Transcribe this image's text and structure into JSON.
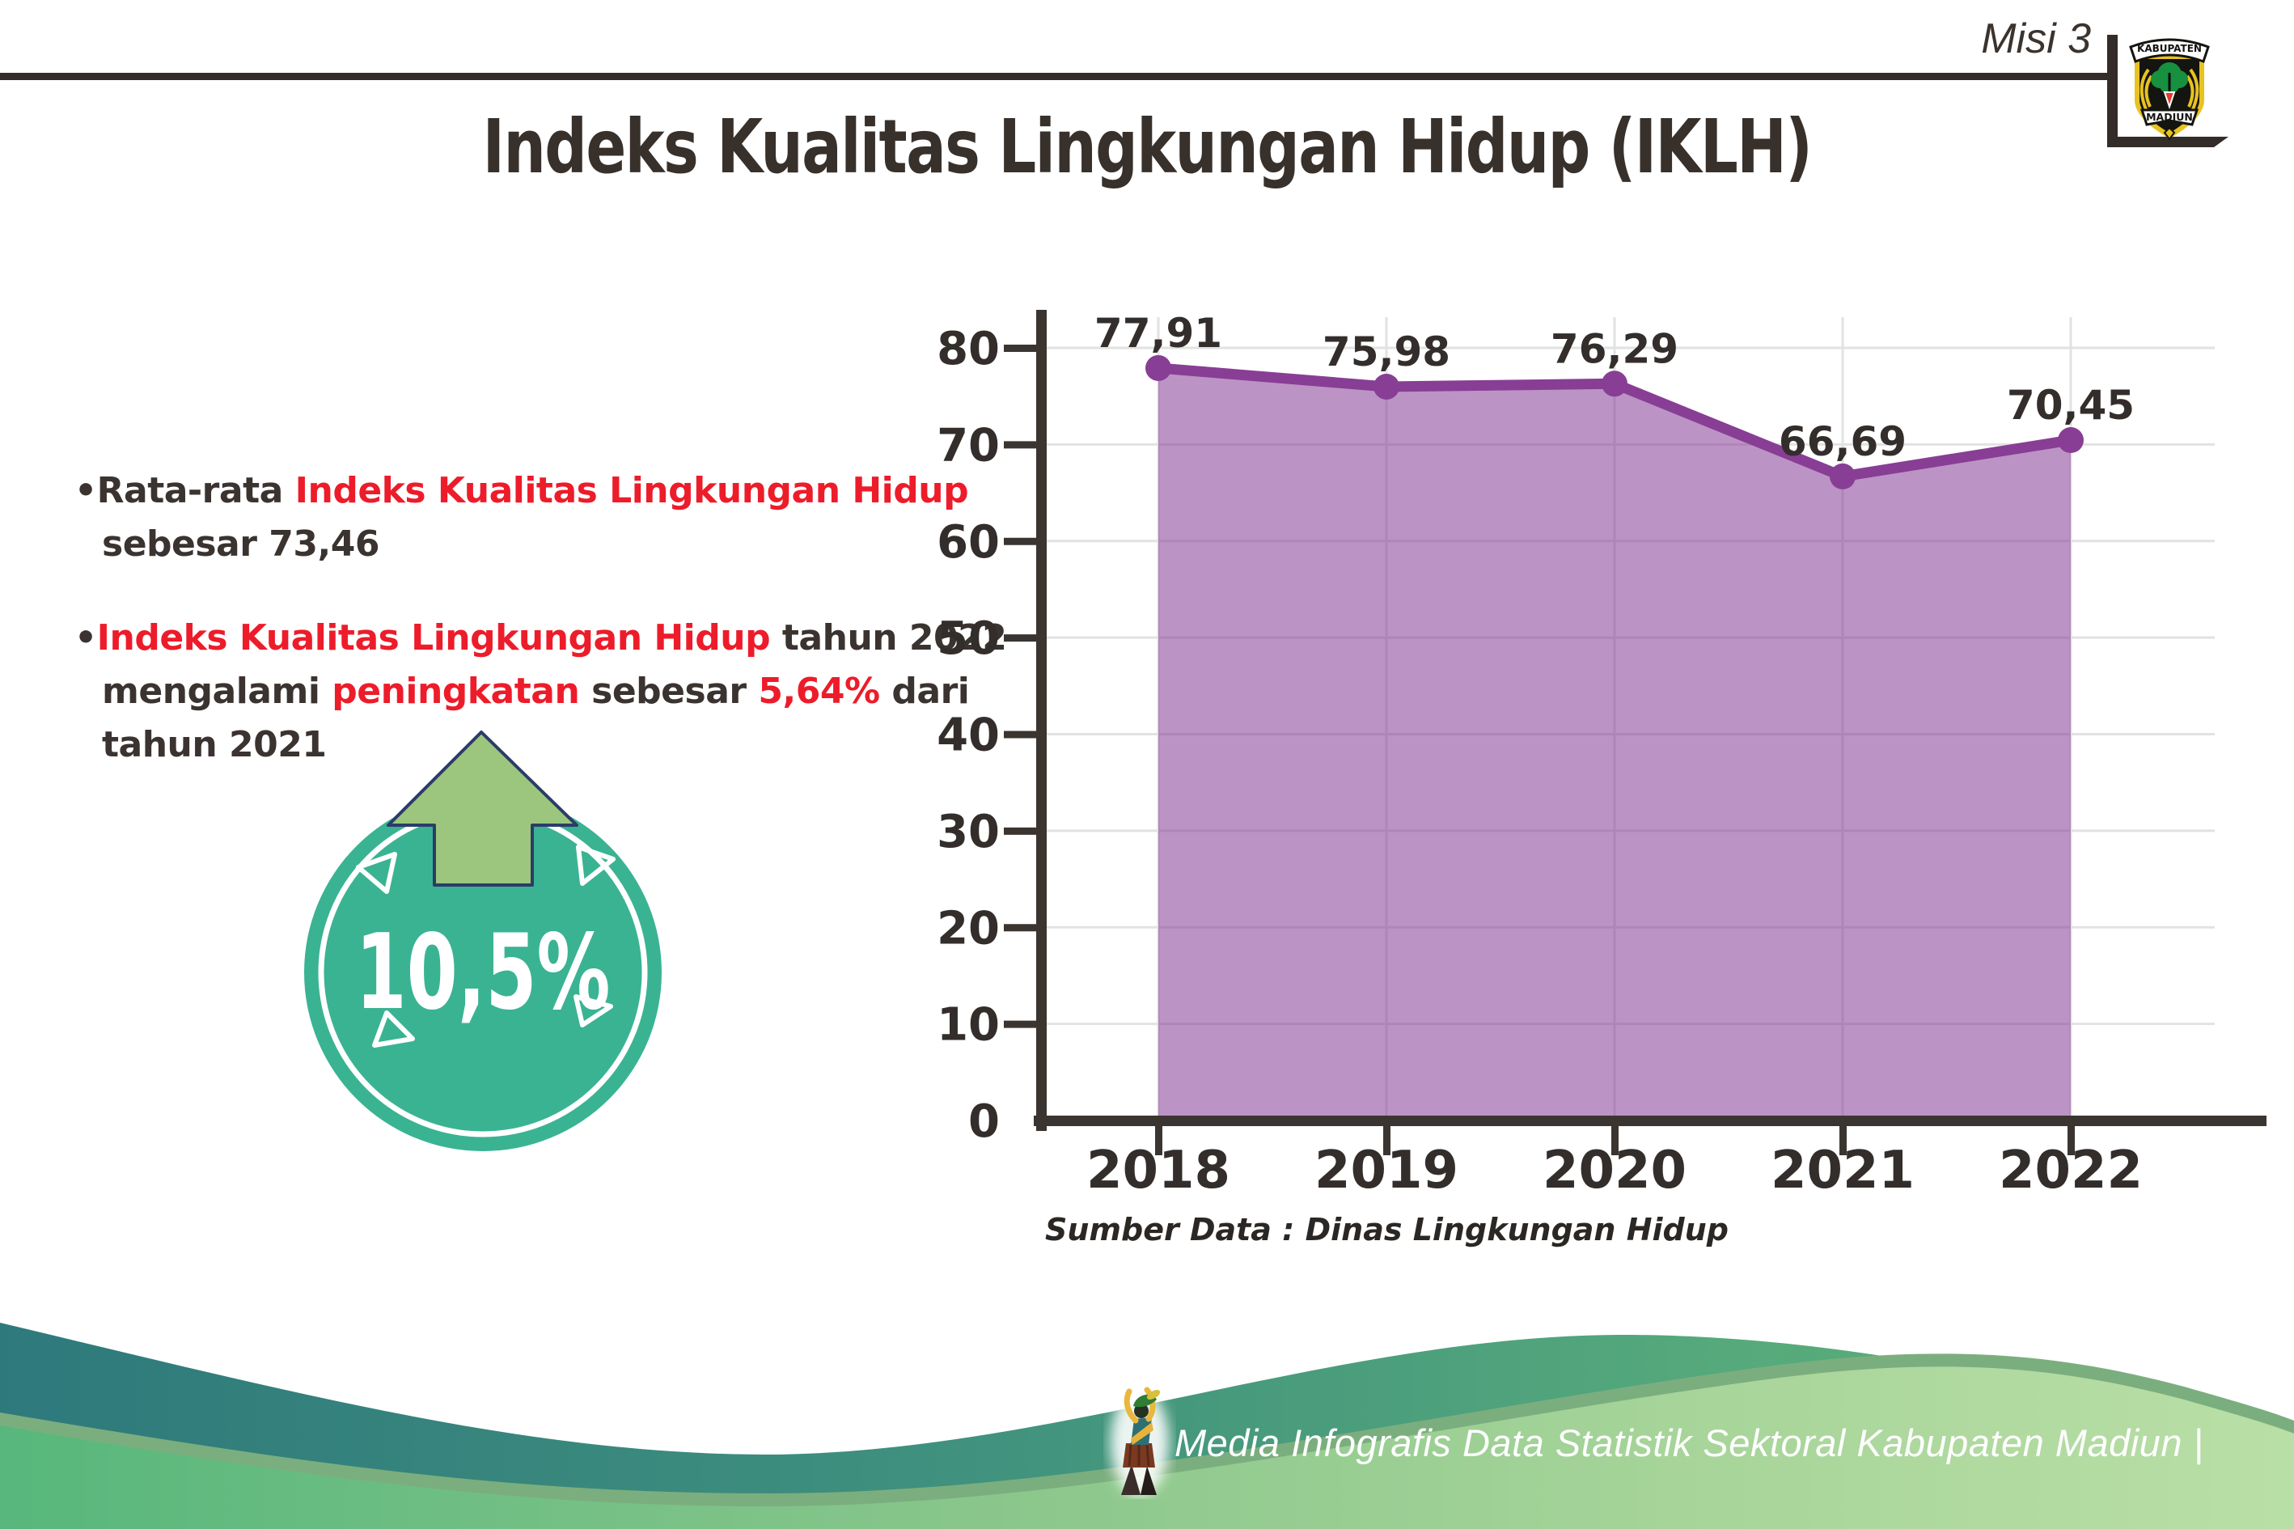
{
  "header": {
    "misi_label": "Misi 3",
    "title": "Indeks Kualitas Lingkungan Hidup (IKLH)",
    "logo": {
      "top_text": "KABUPATEN",
      "bottom_text": "MADIUN"
    }
  },
  "bullets": [
    {
      "lines": [
        [
          {
            "t": "•",
            "c": "dark"
          },
          {
            "t": "Rata-rata ",
            "c": "dark"
          },
          {
            "t": "Indeks Kualitas Lingkungan Hidup",
            "c": "red"
          }
        ],
        [
          {
            "t": "sebesar 73,46",
            "c": "dark"
          }
        ]
      ]
    },
    {
      "lines": [
        [
          {
            "t": "•",
            "c": "dark"
          },
          {
            "t": "Indeks Kualitas Lingkungan Hidup",
            "c": "red"
          },
          {
            "t": " tahun 2022",
            "c": "dark"
          }
        ],
        [
          {
            "t": "mengalami ",
            "c": "dark"
          },
          {
            "t": "peningkatan",
            "c": "red"
          },
          {
            "t": " sebesar ",
            "c": "dark"
          },
          {
            "t": "5,64%",
            "c": "red"
          },
          {
            "t": " dari",
            "c": "dark"
          }
        ],
        [
          {
            "t": "tahun 2021",
            "c": "dark"
          }
        ]
      ]
    }
  ],
  "badge": {
    "value": "10,5%",
    "circle_color": "#3ab393",
    "arrow_color": "#9cc67e",
    "arrow_outline": "#2b3c68"
  },
  "chart_data": {
    "type": "area",
    "title": "",
    "categories": [
      "2018",
      "2019",
      "2020",
      "2021",
      "2022"
    ],
    "values": [
      77.91,
      75.98,
      76.29,
      66.69,
      70.45
    ],
    "value_labels": [
      "77,91",
      "75,98",
      "76,29",
      "66,69",
      "70,45"
    ],
    "y_ticks": [
      0,
      10,
      20,
      30,
      40,
      50,
      60,
      70,
      80
    ],
    "ylim": [
      0,
      83
    ],
    "xlabel": "",
    "ylabel": "",
    "grid": true,
    "legend": "none",
    "line_color": "#883e94",
    "marker_color": "#883e94",
    "fill_color": "rgba(136,62,152,0.56)",
    "grid_color": "#e2e2e2",
    "axis_color": "#3b3531",
    "label_color": "#332e2b",
    "source": "Sumber Data : Dinas Lingkungan Hidup"
  },
  "footer": {
    "text": "Media Infografis Data Statistik Sektoral Kabupaten Madiun |"
  },
  "colors": {
    "red_accent": "#ed1c2a",
    "dark_text": "#3a3330",
    "wave_teal": "#2e797c",
    "wave_green": "#5fb078",
    "wave_light_left": "#57b77c",
    "wave_light_right": "#b9dfa6"
  }
}
